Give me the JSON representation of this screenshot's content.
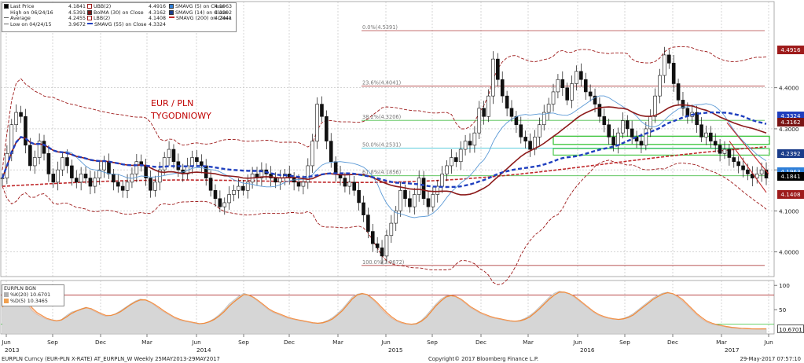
{
  "chart_data": {
    "type": "candlestick",
    "title": "EUR / PLN",
    "subtitle": "TYGODNIOWY",
    "y_ticks": [
      "4.0000",
      "4.1000",
      "4.2000",
      "4.3000",
      "4.4000"
    ],
    "y_range": [
      3.94,
      4.61
    ],
    "x_ticks": [
      {
        "label": "Jun"
      },
      {
        "label": "Sep"
      },
      {
        "label": "Dec"
      },
      {
        "label": "Mar"
      },
      {
        "label": "Jun"
      },
      {
        "label": "Sep"
      },
      {
        "label": "Dec"
      },
      {
        "label": "Mar"
      },
      {
        "label": "Jun"
      },
      {
        "label": "Sep"
      },
      {
        "label": "Dec"
      },
      {
        "label": "Mar"
      },
      {
        "label": "Jun"
      },
      {
        "label": "Sep"
      },
      {
        "label": "Dec"
      },
      {
        "label": "Mar"
      },
      {
        "label": "Jun"
      }
    ],
    "years": [
      "2013",
      "2014",
      "2015",
      "2016",
      "2017"
    ],
    "legend": [
      {
        "label": "Last Price",
        "value": "4.1841",
        "swatch": "#000000"
      },
      {
        "label": "High on 06/24/16",
        "value": "4.5391",
        "swatch": "none"
      },
      {
        "label": "Average",
        "value": "4.2455",
        "swatch": "none"
      },
      {
        "label": "Low on 04/24/15",
        "value": "3.9672",
        "swatch": "none"
      },
      {
        "label": "UBB(2)",
        "value": "4.4916",
        "swatch": "#9e1b1b"
      },
      {
        "label": "BolMA (30) on Close",
        "value": "4.3162",
        "swatch": "#7a1414"
      },
      {
        "label": "LBB(2)",
        "value": "4.1408",
        "swatch": "#9e1b1b"
      },
      {
        "label": "SMAVG (55) on Close",
        "value": "4.3324",
        "swatch": "#1f3fbf"
      },
      {
        "label": "SMAVG (5) on Close",
        "value": "4.1963",
        "swatch": "#2f7fd8"
      },
      {
        "label": "SMAVG (14) on Close",
        "value": "4.2392",
        "swatch": "#1a3c8a"
      },
      {
        "label": "SMAVG (200) on Close",
        "value": "4.2441",
        "swatch": "#c0292b"
      }
    ],
    "fib_levels": [
      {
        "label": "0.0%(4.5391)",
        "value": 4.5391
      },
      {
        "label": "23.6%(4.4041)",
        "value": 4.4041
      },
      {
        "label": "38.2%(4.3206)",
        "value": 4.3206
      },
      {
        "label": "50.0%(4.2531)",
        "value": 4.2531
      },
      {
        "label": "61.8%(4.1856)",
        "value": 4.1856
      },
      {
        "label": "100.0%(3.9672)",
        "value": 3.9672
      }
    ],
    "price_tags": [
      {
        "value": "4.4916",
        "color": "#9e1b1b",
        "price": 4.4916
      },
      {
        "value": "4.3324",
        "color": "#1f3fbf",
        "price": 4.3324
      },
      {
        "value": "4.3162",
        "color": "#7a1414",
        "price": 4.3162
      },
      {
        "value": "4.2392",
        "color": "#1a3c8a",
        "price": 4.2392
      },
      {
        "value": "4.1963",
        "color": "#2f7fd8",
        "price": 4.1963
      },
      {
        "value": "4.1841",
        "color": "#000000",
        "price": 4.1841
      },
      {
        "value": "4.1408",
        "color": "#9e1b1b",
        "price": 4.1408
      }
    ],
    "closes": [
      4.18,
      4.24,
      4.31,
      4.34,
      4.33,
      4.26,
      4.21,
      4.23,
      4.27,
      4.24,
      4.19,
      4.17,
      4.2,
      4.23,
      4.21,
      4.18,
      4.17,
      4.19,
      4.18,
      4.16,
      4.18,
      4.2,
      4.22,
      4.19,
      4.17,
      4.16,
      4.15,
      4.17,
      4.19,
      4.22,
      4.21,
      4.18,
      4.15,
      4.17,
      4.2,
      4.23,
      4.25,
      4.22,
      4.2,
      4.19,
      4.21,
      4.23,
      4.22,
      4.21,
      4.18,
      4.15,
      4.13,
      4.11,
      4.12,
      4.14,
      4.15,
      4.16,
      4.15,
      4.17,
      4.19,
      4.18,
      4.2,
      4.19,
      4.18,
      4.17,
      4.18,
      4.19,
      4.18,
      4.17,
      4.16,
      4.17,
      4.21,
      4.27,
      4.36,
      4.33,
      4.27,
      4.22,
      4.19,
      4.18,
      4.16,
      4.17,
      4.15,
      4.12,
      4.09,
      4.05,
      4.02,
      4.01,
      3.99,
      4.04,
      4.07,
      4.1,
      4.15,
      4.13,
      4.11,
      4.14,
      4.18,
      4.13,
      4.11,
      4.14,
      4.16,
      4.19,
      4.21,
      4.23,
      4.22,
      4.25,
      4.27,
      4.26,
      4.29,
      4.35,
      4.33,
      4.38,
      4.47,
      4.42,
      4.38,
      4.35,
      4.33,
      4.31,
      4.28,
      4.27,
      4.25,
      4.28,
      4.31,
      4.34,
      4.36,
      4.39,
      4.42,
      4.4,
      4.37,
      4.41,
      4.44,
      4.42,
      4.39,
      4.38,
      4.36,
      4.33,
      4.31,
      4.28,
      4.26,
      4.29,
      4.32,
      4.3,
      4.28,
      4.27,
      4.26,
      4.3,
      4.33,
      4.38,
      4.43,
      4.48,
      4.46,
      4.41,
      4.37,
      4.35,
      4.33,
      4.34,
      4.31,
      4.28,
      4.29,
      4.27,
      4.26,
      4.24,
      4.25,
      4.23,
      4.22,
      4.21,
      4.2,
      4.19,
      4.18,
      4.19,
      4.2,
      4.18
    ],
    "stoch_ticks": [
      "50",
      "100"
    ],
    "stoch_k": [
      60,
      72,
      80,
      85,
      78,
      62,
      48,
      40,
      35,
      30,
      28,
      26,
      30,
      38,
      45,
      48,
      52,
      55,
      50,
      45,
      40,
      36,
      38,
      42,
      48,
      55,
      62,
      68,
      72,
      70,
      65,
      58,
      50,
      44,
      38,
      32,
      28,
      26,
      24,
      22,
      20,
      22,
      26,
      32,
      40,
      50,
      62,
      70,
      78,
      84,
      80,
      74,
      66,
      58,
      50,
      44,
      40,
      36,
      32,
      30,
      28,
      26,
      24,
      22,
      22,
      24,
      28,
      34,
      42,
      52,
      64,
      76,
      82,
      84,
      80,
      72,
      62,
      50,
      40,
      32,
      26,
      22,
      20,
      20,
      22,
      28,
      38,
      50,
      62,
      72,
      78,
      80,
      76,
      70,
      62,
      54,
      48,
      42,
      38,
      34,
      32,
      30,
      28,
      26,
      26,
      28,
      32,
      38,
      46,
      56,
      66,
      76,
      84,
      88,
      86,
      82,
      76,
      68,
      60,
      52,
      44,
      38,
      34,
      32,
      30,
      30,
      32,
      36,
      42,
      50,
      58,
      66,
      74,
      80,
      84,
      86,
      82,
      76,
      68,
      58,
      48,
      38,
      30,
      24,
      20,
      18,
      16,
      14,
      13,
      12,
      11,
      11,
      10.7,
      10.7,
      11,
      11
    ],
    "stoch_d": [
      55,
      68,
      76,
      82,
      80,
      68,
      54,
      44,
      38,
      32,
      29,
      27,
      29,
      35,
      42,
      47,
      51,
      54,
      52,
      47,
      42,
      38,
      38,
      41,
      46,
      53,
      60,
      66,
      70,
      70,
      66,
      60,
      53,
      46,
      40,
      34,
      30,
      27,
      25,
      23,
      21,
      22,
      25,
      30,
      37,
      46,
      57,
      66,
      74,
      81,
      80,
      75,
      68,
      60,
      52,
      46,
      42,
      38,
      34,
      31,
      29,
      27,
      25,
      23,
      22,
      23,
      26,
      31,
      39,
      48,
      60,
      72,
      80,
      83,
      81,
      74,
      65,
      54,
      44,
      35,
      28,
      24,
      21,
      20,
      21,
      26,
      34,
      46,
      58,
      68,
      76,
      79,
      77,
      72,
      64,
      56,
      50,
      44,
      40,
      36,
      33,
      31,
      29,
      27,
      26,
      27,
      30,
      35,
      43,
      52,
      62,
      72,
      80,
      86,
      86,
      83,
      78,
      70,
      62,
      54,
      46,
      40,
      36,
      33,
      31,
      30,
      31,
      34,
      39,
      47,
      55,
      63,
      71,
      77,
      82,
      85,
      83,
      78,
      71,
      61,
      51,
      41,
      33,
      26,
      22,
      19,
      17,
      15,
      13.5,
      12.5,
      11.5,
      11,
      10.5,
      10.3,
      10.4,
      10.3
    ],
    "sub_legend": [
      {
        "label": "EURPLN BGN",
        "swatch": "none"
      },
      {
        "label": "%K(20)",
        "value": "10.6701",
        "swatch": "#b0b0b0"
      },
      {
        "label": "%D(5)",
        "value": "10.3465",
        "swatch": "#f0a050"
      }
    ],
    "sub_tag": "10.6701"
  },
  "status": {
    "left": "EURPLN Curncy (EUR-PLN X-RATE) AT_EURPLN_W  Weekly 25MAY2013-29MAY2017",
    "center": "Copyright© 2017 Bloomberg Finance L.P.",
    "right": "29-May-2017 07:57:10"
  }
}
